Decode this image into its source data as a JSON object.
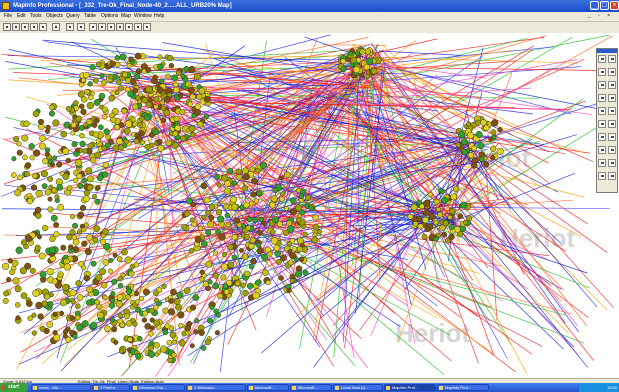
{
  "window": {
    "title": "MapInfo Professional - [_332_Tre-Ok_Final_Node-40_2.....ALL_URB20% Map]",
    "min_symbol": "_",
    "max_symbol": "□",
    "close_symbol": "×"
  },
  "menu": {
    "items": [
      "File",
      "Edit",
      "Tools",
      "Objects",
      "Query",
      "Table",
      "Options",
      "Map",
      "Window",
      "Help"
    ],
    "mdi_controls": "_ ▫ ×"
  },
  "toolbar": {
    "buttons": [
      "new-icon",
      "open-icon",
      "save-icon",
      "print-icon",
      "cut-icon",
      "help-icon",
      "pointer-icon",
      "layer-control-icon",
      "grid-icon",
      "table-icon",
      "window-icon",
      "graph-icon",
      "legend-icon",
      "statistics-icon",
      "info-icon"
    ]
  },
  "map": {
    "watermark_words": [
      "Heriot",
      "Heriot",
      "Heriot"
    ],
    "line_colors": [
      "#ff1010",
      "#ee2020",
      "#ff6020",
      "#1020e0",
      "#3030ff",
      "#20c020",
      "#ffa000",
      "#ff40c0"
    ],
    "node_colors": [
      "#c8c010",
      "#a0a000",
      "#e0d020",
      "#30a030",
      "#805010"
    ]
  },
  "status": {
    "zoom": "Zoom: 6.512 km",
    "editing": "Editing: Tre-Ok_Final_Lines=Stats_Editing=Auto"
  },
  "taskbar": {
    "start_label": "start",
    "tasks": [
      "Inbox - Mic...",
      "3 Firefox",
      "Windows Exp...",
      "2 Windows...",
      "Microsoft...",
      "Microsoft...",
      "Local Host (f)...",
      "MapInfo Prof...",
      "Mapinfo Prof..."
    ],
    "clock": "10:50"
  },
  "palette": {
    "tools": [
      "select-icon",
      "marquee-icon",
      "radius-icon",
      "zoom-in-icon",
      "zoom-out-icon",
      "grabber-icon",
      "info-tool-icon",
      "label-icon",
      "ruler-icon",
      "drag-window-icon",
      "symbol-icon",
      "line-icon",
      "polyline-icon",
      "arc-icon",
      "polygon-icon",
      "ellipse-icon",
      "rectangle-icon",
      "text-icon",
      "frame-icon",
      "reshape-icon"
    ]
  }
}
